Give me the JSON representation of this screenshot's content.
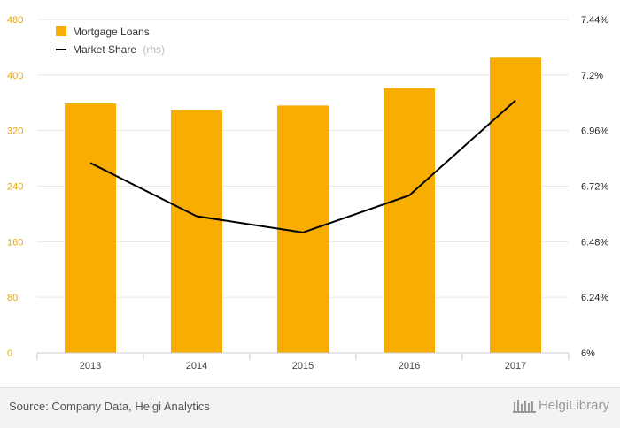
{
  "chart_data": {
    "type": "bar+line",
    "categories": [
      "2013",
      "2014",
      "2015",
      "2016",
      "2017"
    ],
    "series": [
      {
        "name": "Mortgage Loans",
        "type": "bar",
        "axis": "left",
        "color": "#f7ae00",
        "values": [
          359,
          350,
          356,
          381,
          425
        ]
      },
      {
        "name": "Market Share",
        "name_note": "(rhs)",
        "type": "line",
        "axis": "right",
        "color": "#000000",
        "values": [
          6.82,
          6.59,
          6.52,
          6.68,
          7.09
        ]
      }
    ],
    "y_left": {
      "min": 0,
      "max": 480,
      "ticks": [
        "0",
        "80",
        "160",
        "240",
        "320",
        "400",
        "480"
      ]
    },
    "y_right": {
      "min": 6.0,
      "max": 7.44,
      "ticks": [
        "6%",
        "6.24%",
        "6.48%",
        "6.72%",
        "6.96%",
        "7.2%",
        "7.44%"
      ]
    },
    "grid": true,
    "legend": "top-left"
  },
  "footer": {
    "source": "Source: Company Data, Helgi Analytics",
    "brand": "HelgiLibrary"
  }
}
